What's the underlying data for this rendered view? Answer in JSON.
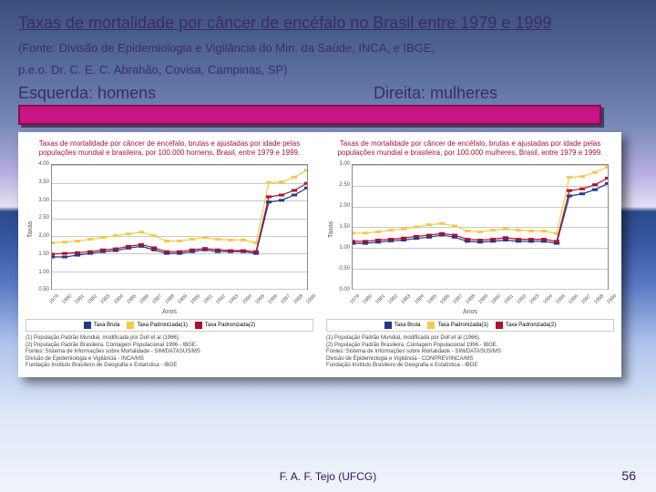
{
  "slide": {
    "title": "Taxas de mortalidade por câncer de encéfalo no Brasil entre 1979 e 1999",
    "source_line1": "(Fonte: Divisão de Epidemiologia e Vigilância do Min. da Saúde, INCA, e IBGE,",
    "source_line2": "p.e.o. Dr. C. E. C. Abrahão, Covisa, Campinas, SP)",
    "left_label": "Esquerda:   homens",
    "right_label": "Direita:   mulheres",
    "footer_center": "F. A. F. Tejo (UFCG)",
    "page_number": "56",
    "magenta_bar_color": "#c71585"
  },
  "chart_style": {
    "grid_color": "#c8c8c8",
    "axis_color": "#888888",
    "marker_size": 3,
    "line_width": 1.2,
    "title_color": "#b01030",
    "colors": {
      "bruta": "#223a8a",
      "pad1": "#f7c948",
      "pad2": "#b01030"
    },
    "background_color": "#ffffff"
  },
  "years": [
    1979,
    1980,
    1981,
    1982,
    1983,
    1984,
    1985,
    1986,
    1987,
    1988,
    1989,
    1990,
    1991,
    1992,
    1993,
    1994,
    1995,
    1996,
    1997,
    1998,
    1999
  ],
  "left_chart": {
    "type": "line",
    "title": "Taxas de mortalidade por câncer de encéfalo, brutas e ajustadas por idade pelas populações mundial e brasileira, por 100.000 homens, Brasil, entre 1979 e 1999.",
    "ylabel": "Taxas",
    "xlabel": "Anos",
    "ylim": [
      0.5,
      4.0
    ],
    "yticks": [
      0.5,
      1.0,
      1.5,
      2.0,
      2.5,
      3.0,
      3.5,
      4.0
    ],
    "series": {
      "bruta": [
        1.4,
        1.4,
        1.45,
        1.5,
        1.55,
        1.58,
        1.65,
        1.7,
        1.6,
        1.5,
        1.5,
        1.55,
        1.6,
        1.55,
        1.55,
        1.55,
        1.5,
        2.95,
        3.0,
        3.15,
        3.35
      ],
      "pad1": [
        1.8,
        1.82,
        1.85,
        1.9,
        1.95,
        2.0,
        2.05,
        2.1,
        2.0,
        1.85,
        1.85,
        1.9,
        1.95,
        1.9,
        1.88,
        1.88,
        1.8,
        3.5,
        3.52,
        3.65,
        3.85
      ],
      "pad2": [
        1.48,
        1.5,
        1.52,
        1.55,
        1.6,
        1.63,
        1.7,
        1.75,
        1.66,
        1.55,
        1.55,
        1.6,
        1.64,
        1.6,
        1.58,
        1.58,
        1.55,
        3.1,
        3.15,
        3.28,
        3.48
      ]
    },
    "legend": [
      {
        "key": "bruta",
        "label": "Taxa Bruta"
      },
      {
        "key": "pad1",
        "label": "Taxa Padronizada(1)"
      },
      {
        "key": "pad2",
        "label": "Taxa Padronizada(2)"
      }
    ],
    "footnotes": "(1) População Padrão Mundial, modificada por Doll et al (1966).\n(2) População Padrão Brasileira. Contagem Populacional 1996 - IBGE.\nFontes: Sistema de Informações sobre Mortalidade - SIM/DATASUS/MS\nDivisão de Epidemiologia e Vigilância - INCA/MS\nFundação Instituto Brasileiro de Geografia e Estatística - IBGE"
  },
  "right_chart": {
    "type": "line",
    "title": "Taxas de mortalidade por câncer de encéfalo, brutas e ajustadas por idade pelas populações mundial e brasileira, por 100.000 mulheres, Brasil, entre 1979 e 1999.",
    "ylabel": "Taxas",
    "xlabel": "Anos",
    "ylim": [
      0.0,
      3.0
    ],
    "yticks": [
      0.0,
      0.5,
      1.0,
      1.5,
      2.0,
      2.5,
      3.0
    ],
    "series": {
      "bruta": [
        1.1,
        1.1,
        1.13,
        1.16,
        1.18,
        1.22,
        1.25,
        1.3,
        1.25,
        1.15,
        1.13,
        1.15,
        1.18,
        1.15,
        1.15,
        1.15,
        1.1,
        2.25,
        2.3,
        2.4,
        2.55
      ],
      "pad1": [
        1.35,
        1.35,
        1.38,
        1.42,
        1.45,
        1.5,
        1.55,
        1.58,
        1.52,
        1.4,
        1.38,
        1.42,
        1.45,
        1.42,
        1.4,
        1.4,
        1.34,
        2.7,
        2.72,
        2.82,
        2.95
      ],
      "pad2": [
        1.15,
        1.15,
        1.18,
        1.2,
        1.23,
        1.27,
        1.3,
        1.34,
        1.3,
        1.2,
        1.18,
        1.2,
        1.24,
        1.2,
        1.2,
        1.2,
        1.15,
        2.38,
        2.42,
        2.52,
        2.68
      ]
    },
    "legend": [
      {
        "key": "bruta",
        "label": "Taxa Bruta"
      },
      {
        "key": "pad1",
        "label": "Taxa Padronizada(1)"
      },
      {
        "key": "pad2",
        "label": "Taxa Padronizada(2)"
      }
    ],
    "footnotes": "(1) População Padrão Mundial, modificada por Doll et al (1966).\n(2) População Padrão Brasileira. Contagem Populacional 1996 - IBGE.\nFontes: Sistema de Informações sobre Mortalidade - SIM/DATASUS/MS\nDivisão de Epidemiologia e Vigilância - CONPREV/INCA/MS\nFundação Instituto Brasileiro de Geografia e Estatística - IBGE"
  }
}
